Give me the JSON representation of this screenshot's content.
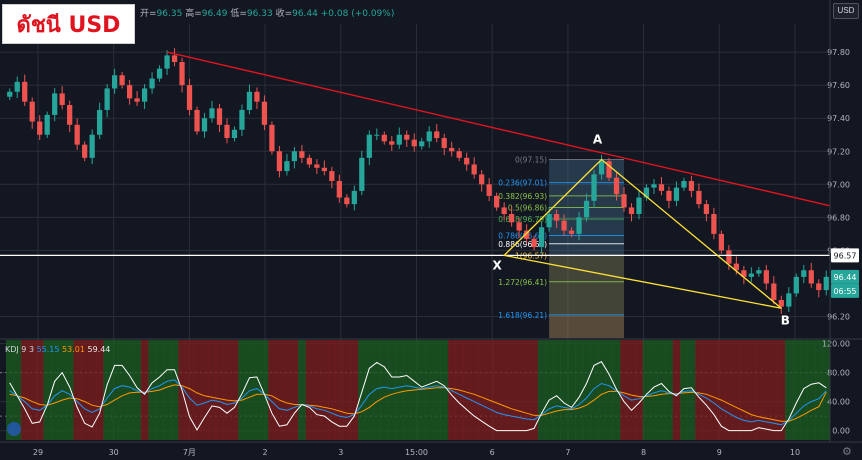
{
  "title": "ดัชนี USD",
  "ohlc": {
    "open_label": "开=",
    "open": "96.35",
    "high_label": "高=",
    "high": "96.49",
    "low_label": "低=",
    "low": "96.33",
    "close_label": "收=",
    "close": "96.44",
    "change": "+0.08 (+0.09%)"
  },
  "currency_button": "USD",
  "indicator": {
    "name": "KDJ 9 3",
    "k": "55.15",
    "d": "53.01",
    "j": "59.44"
  },
  "colors": {
    "background": "#131722",
    "up": "#26a69a",
    "down": "#ef5350",
    "trendline": "#e0141e",
    "pattern": "#ffe135",
    "k_line": "#2196f3",
    "d_line": "#ff9800",
    "j_line": "#ffffff",
    "bull_zone": "#1b5e20",
    "bear_zone": "#7f1d1d"
  },
  "chart_data": [
    {
      "type": "candlestick",
      "yaxis": {
        "ticks": [
          "97.80",
          "97.60",
          "97.40",
          "97.20",
          "97.00",
          "96.80",
          "96.60",
          "96.20"
        ],
        "range": [
          96.07,
          97.97
        ]
      },
      "xaxis": {
        "ticks": [
          "29",
          "30",
          "7月",
          "2",
          "3",
          "15:00",
          "6",
          "7",
          "8",
          "9",
          "10"
        ]
      },
      "price_labels": {
        "horizontal_line": "96.57",
        "last_price": "96.44",
        "countdown": "06:55"
      },
      "close_series": [
        97.56,
        97.62,
        97.5,
        97.38,
        97.3,
        97.42,
        97.55,
        97.48,
        97.36,
        97.24,
        97.16,
        97.3,
        97.45,
        97.58,
        97.66,
        97.6,
        97.52,
        97.5,
        97.58,
        97.64,
        97.7,
        97.78,
        97.74,
        97.6,
        97.45,
        97.32,
        97.4,
        97.46,
        97.36,
        97.28,
        97.33,
        97.45,
        97.56,
        97.5,
        97.36,
        97.2,
        97.08,
        97.14,
        97.2,
        97.16,
        97.12,
        97.1,
        97.08,
        97.02,
        96.92,
        96.88,
        96.96,
        97.16,
        97.3,
        97.3,
        97.26,
        97.24,
        97.3,
        97.27,
        97.23,
        97.26,
        97.32,
        97.28,
        97.22,
        97.2,
        97.16,
        97.12,
        97.06,
        97.0,
        96.93,
        96.86,
        96.82,
        96.77,
        96.72,
        96.67,
        96.62,
        96.74,
        96.82,
        96.78,
        96.72,
        96.7,
        96.8,
        96.9,
        97.06,
        97.14,
        97.04,
        96.94,
        96.86,
        96.82,
        96.92,
        96.98,
        97.0,
        96.96,
        96.9,
        96.98,
        97.02,
        96.96,
        96.88,
        96.82,
        96.7,
        96.6,
        96.52,
        96.48,
        96.44,
        96.46,
        96.48,
        96.4,
        96.3,
        96.26,
        96.34,
        96.44,
        96.48,
        96.4,
        96.36,
        96.44
      ],
      "trendline": {
        "start": 97.8,
        "end": 96.87
      },
      "pattern": {
        "X": 96.57,
        "A": 97.15,
        "B": 96.25,
        "labels": [
          "X",
          "A",
          "B"
        ]
      },
      "fibonacci": [
        {
          "label": "0(97.15)",
          "value": 97.15
        },
        {
          "label": "0.236(97.01)",
          "value": 97.01
        },
        {
          "label": "0.382(96.93)",
          "value": 96.93
        },
        {
          "label": "0.5(96.86)",
          "value": 96.86
        },
        {
          "label": "0.618(96.79)",
          "value": 96.79
        },
        {
          "label": "0.786(96.69)",
          "value": 96.69
        },
        {
          "label": "0.886(96.64)",
          "value": 96.64
        },
        {
          "label": "1(96.57)",
          "value": 96.57
        },
        {
          "label": "1.272(96.41)",
          "value": 96.41
        },
        {
          "label": "1.618(96.21)",
          "value": 96.21
        }
      ]
    },
    {
      "type": "line",
      "name": "KDJ 9 3",
      "yaxis": {
        "ticks": [
          "120.00",
          "80.00",
          "40.00",
          "0.00"
        ],
        "range": [
          -13,
          125
        ]
      },
      "series": [
        {
          "name": "K",
          "values": [
            55,
            48,
            40,
            30,
            28,
            35,
            48,
            55,
            50,
            40,
            30,
            25,
            30,
            45,
            58,
            62,
            60,
            55,
            52,
            58,
            62,
            68,
            70,
            60,
            45,
            35,
            38,
            42,
            40,
            36,
            38,
            45,
            55,
            58,
            50,
            40,
            30,
            28,
            32,
            36,
            34,
            30,
            28,
            24,
            20,
            18,
            22,
            35,
            50,
            58,
            60,
            58,
            60,
            62,
            60,
            58,
            60,
            62,
            60,
            55,
            50,
            45,
            40,
            35,
            30,
            25,
            22,
            20,
            18,
            16,
            15,
            22,
            30,
            34,
            32,
            30,
            36,
            45,
            58,
            65,
            62,
            55,
            48,
            42,
            44,
            48,
            52,
            55,
            52,
            50,
            54,
            55,
            50,
            45,
            38,
            30,
            24,
            18,
            14,
            12,
            14,
            12,
            10,
            8,
            14,
            24,
            34,
            40,
            44,
            55
          ]
        },
        {
          "name": "D",
          "values": [
            50,
            48,
            45,
            40,
            36,
            35,
            38,
            42,
            45,
            44,
            40,
            35,
            33,
            36,
            42,
            48,
            52,
            53,
            53,
            54,
            56,
            60,
            63,
            62,
            58,
            52,
            48,
            46,
            44,
            42,
            41,
            42,
            46,
            50,
            50,
            48,
            42,
            38,
            36,
            36,
            35,
            34,
            32,
            30,
            27,
            24,
            23,
            26,
            32,
            40,
            46,
            50,
            53,
            55,
            56,
            57,
            58,
            59,
            59,
            58,
            56,
            53,
            50,
            46,
            42,
            38,
            34,
            30,
            27,
            24,
            21,
            21,
            24,
            27,
            29,
            29,
            31,
            35,
            42,
            50,
            54,
            54,
            52,
            49,
            47,
            47,
            48,
            50,
            51,
            51,
            52,
            53,
            52,
            50,
            46,
            42,
            37,
            32,
            27,
            22,
            19,
            17,
            15,
            13,
            13,
            17,
            22,
            28,
            33,
            53
          ]
        },
        {
          "name": "J",
          "values": [
            66,
            48,
            30,
            10,
            12,
            35,
            68,
            80,
            60,
            32,
            10,
            5,
            24,
            63,
            90,
            90,
            76,
            59,
            50,
            66,
            74,
            84,
            84,
            56,
            19,
            1,
            18,
            34,
            32,
            24,
            32,
            51,
            73,
            74,
            50,
            24,
            6,
            8,
            24,
            36,
            32,
            22,
            20,
            12,
            6,
            6,
            20,
            53,
            86,
            94,
            88,
            74,
            74,
            76,
            68,
            60,
            64,
            68,
            62,
            49,
            38,
            29,
            20,
            13,
            6,
            0,
            0,
            0,
            0,
            0,
            3,
            24,
            42,
            48,
            38,
            32,
            46,
            65,
            90,
            95,
            78,
            57,
            40,
            28,
            38,
            50,
            60,
            65,
            54,
            48,
            58,
            59,
            46,
            35,
            22,
            6,
            0,
            0,
            0,
            0,
            4,
            2,
            0,
            0,
            16,
            38,
            58,
            64,
            66,
            59
          ]
        }
      ]
    }
  ]
}
